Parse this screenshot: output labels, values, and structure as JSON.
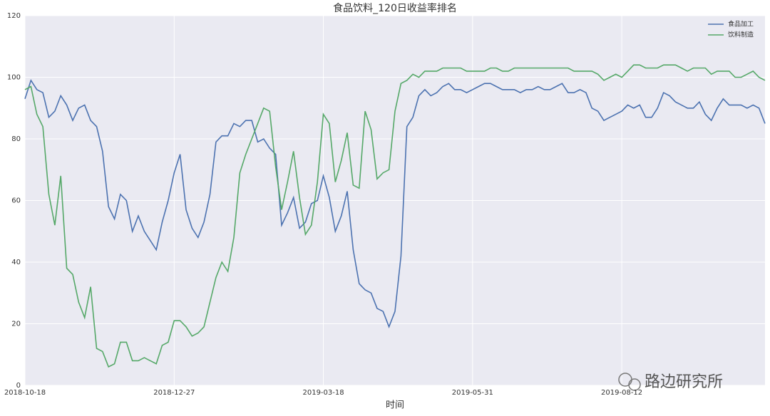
{
  "chart_data": {
    "type": "line",
    "title": "食品饮料_120日收益率排名",
    "x_label": "时间",
    "categories": [
      "2018-10-18",
      null,
      null,
      null,
      null,
      null,
      null,
      null,
      null,
      null,
      null,
      null,
      null,
      null,
      null,
      null,
      null,
      null,
      null,
      null,
      null,
      null,
      null,
      null,
      null,
      "2018-12-27",
      null,
      null,
      null,
      null,
      null,
      null,
      null,
      null,
      null,
      null,
      null,
      null,
      null,
      null,
      null,
      null,
      null,
      null,
      null,
      null,
      null,
      null,
      null,
      null,
      "2019-03-18",
      null,
      null,
      null,
      null,
      null,
      null,
      null,
      null,
      null,
      null,
      null,
      null,
      null,
      null,
      null,
      null,
      null,
      null,
      null,
      null,
      null,
      null,
      null,
      null,
      "2019-05-31",
      null,
      null,
      null,
      null,
      null,
      null,
      null,
      null,
      null,
      null,
      null,
      null,
      null,
      null,
      null,
      null,
      null,
      null,
      null,
      null,
      null,
      null,
      null,
      null,
      "2019-08-12",
      null,
      null,
      null,
      null,
      null,
      null,
      null,
      null,
      null,
      null,
      null,
      null,
      null,
      null,
      null,
      null,
      null,
      null,
      null,
      null,
      null,
      null,
      null,
      null
    ],
    "series": [
      {
        "name": "食品加工",
        "color": "#4c72b0",
        "values": [
          93,
          99,
          96,
          95,
          87,
          89,
          94,
          91,
          86,
          90,
          91,
          86,
          84,
          76,
          58,
          54,
          62,
          60,
          50,
          55,
          50,
          47,
          44,
          53,
          60,
          69,
          75,
          57,
          51,
          48,
          53,
          62,
          79,
          81,
          81,
          85,
          84,
          86,
          86,
          79,
          80,
          77,
          75,
          52,
          56,
          61,
          51,
          53,
          59,
          60,
          68,
          61,
          50,
          55,
          63,
          44,
          33,
          31,
          30,
          25,
          24,
          19,
          24,
          42,
          84,
          87,
          94,
          96,
          94,
          95,
          97,
          98,
          96,
          96,
          95,
          96,
          97,
          98,
          98,
          97,
          96,
          96,
          96,
          95,
          96,
          96,
          97,
          96,
          96,
          97,
          98,
          95,
          95,
          96,
          95,
          90,
          89,
          86,
          87,
          88,
          89,
          91,
          90,
          91,
          87,
          87,
          90,
          95,
          94,
          92,
          91,
          90,
          90,
          92,
          88,
          86,
          90,
          93,
          91,
          91,
          91,
          90,
          91,
          90,
          85
        ]
      },
      {
        "name": "饮料制造",
        "color": "#55a868",
        "values": [
          96,
          97,
          88,
          84,
          62,
          52,
          68,
          38,
          36,
          27,
          22,
          32,
          12,
          11,
          6,
          7,
          14,
          14,
          8,
          8,
          9,
          8,
          7,
          13,
          14,
          21,
          21,
          19,
          16,
          17,
          19,
          27,
          35,
          40,
          37,
          48,
          69,
          75,
          80,
          85,
          90,
          89,
          71,
          57,
          66,
          76,
          61,
          49,
          52,
          66,
          88,
          85,
          66,
          73,
          82,
          65,
          64,
          89,
          83,
          67,
          69,
          70,
          89,
          98,
          99,
          101,
          100,
          102,
          102,
          102,
          103,
          103,
          103,
          103,
          102,
          102,
          102,
          102,
          103,
          103,
          102,
          102,
          103,
          103,
          103,
          103,
          103,
          103,
          103,
          103,
          103,
          103,
          102,
          102,
          102,
          102,
          101,
          99,
          100,
          101,
          100,
          102,
          104,
          104,
          103,
          103,
          103,
          104,
          104,
          104,
          103,
          102,
          103,
          103,
          103,
          101,
          102,
          102,
          102,
          100,
          100,
          101,
          102,
          100,
          99
        ]
      }
    ],
    "ylim": [
      0,
      120
    ],
    "yticks": [
      0,
      20,
      40,
      60,
      80,
      100,
      120
    ],
    "grid": true,
    "legend": "upper right",
    "watermark": "路边研究所"
  }
}
